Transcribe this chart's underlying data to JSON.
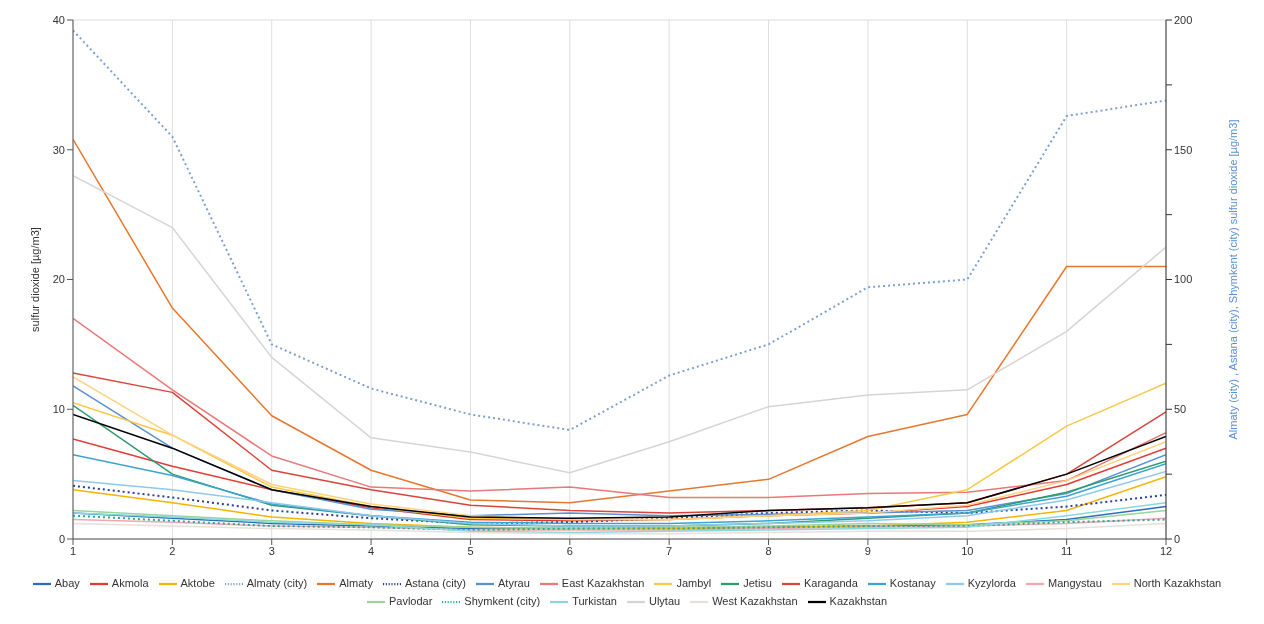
{
  "chart_data": {
    "type": "line",
    "ylabel": "sulfur dioxide [µg/m3]",
    "y2label": "Almaty (city) , Astana (city), Shymkent (city) sulfur dioxide [µg/m3]",
    "x": [
      1,
      2,
      3,
      4,
      5,
      6,
      7,
      8,
      9,
      10,
      11,
      12
    ],
    "xlim": [
      1,
      12
    ],
    "xticks": [
      1,
      2,
      3,
      4,
      5,
      6,
      7,
      8,
      9,
      10,
      11,
      12
    ],
    "ylim": [
      0,
      40
    ],
    "yticks": [
      0,
      10,
      20,
      30,
      40
    ],
    "y2lim": [
      0,
      200
    ],
    "y2ticks": [
      0,
      {
        "value": 25,
        "label": null
      },
      50,
      {
        "value": 75,
        "label": null
      },
      100,
      {
        "value": 125,
        "label": null
      },
      150,
      {
        "value": 175,
        "label": null
      },
      200
    ],
    "grid": true,
    "legend": "bottom",
    "series": [
      {
        "name": "Abay",
        "color": "#2a6ebb",
        "values": [
          2.0,
          1.6,
          1.2,
          1.0,
          0.8,
          0.8,
          0.8,
          0.9,
          1.0,
          1.1,
          1.5,
          2.5
        ]
      },
      {
        "name": "Akmola",
        "color": "#e53935",
        "values": [
          7.7,
          5.6,
          3.8,
          2.4,
          1.5,
          1.4,
          1.5,
          1.8,
          2.0,
          2.5,
          4.2,
          7.0
        ]
      },
      {
        "name": "Aktobe",
        "color": "#f4b400",
        "values": [
          3.8,
          2.8,
          1.7,
          1.2,
          0.9,
          0.8,
          0.8,
          0.9,
          1.0,
          1.3,
          2.2,
          4.8
        ]
      },
      {
        "name": "Almaty (city)",
        "color": "#7f9fd0",
        "axis": "y2",
        "line_style": "dotted",
        "values": [
          196,
          155,
          75,
          58,
          48,
          42,
          63,
          75,
          97,
          100,
          163,
          169
        ]
      },
      {
        "name": "Almaty",
        "color": "#e8772e",
        "values": [
          30.8,
          17.8,
          9.5,
          5.3,
          3.0,
          2.8,
          3.7,
          4.6,
          7.9,
          9.6,
          21,
          21
        ]
      },
      {
        "name": "Astana (city)",
        "color": "#2b3d9b",
        "axis": "y2",
        "line_style": "dotted",
        "values": [
          20.5,
          16,
          11,
          8,
          6,
          6.5,
          8,
          10,
          11,
          10,
          12.5,
          17
        ]
      },
      {
        "name": "Atyrau",
        "color": "#5b8fd6",
        "values": [
          11.8,
          7.0,
          3.8,
          2.3,
          1.8,
          2.0,
          1.8,
          1.9,
          2.0,
          2.2,
          3.5,
          6.5
        ]
      },
      {
        "name": "East Kazakhstan",
        "color": "#e8787a",
        "values": [
          17,
          11.5,
          6.4,
          4.0,
          3.7,
          4.0,
          3.2,
          3.2,
          3.5,
          3.6,
          4.5,
          8.2
        ]
      },
      {
        "name": "Jambyl",
        "color": "#f7c948",
        "values": [
          10.5,
          8,
          4,
          2.5,
          1.6,
          1.5,
          1.5,
          1.8,
          2.2,
          3.8,
          8.7,
          12
        ]
      },
      {
        "name": "Jetisu",
        "color": "#2e9c6e",
        "values": [
          10.3,
          5.0,
          2.6,
          1.8,
          1.1,
          1.0,
          1.0,
          1.2,
          1.6,
          2.0,
          3.6,
          6.0
        ]
      },
      {
        "name": "Karaganda",
        "color": "#d9453b",
        "values": [
          12.8,
          11.3,
          5.3,
          3.8,
          2.6,
          2.2,
          2.0,
          2.2,
          2.4,
          2.8,
          5.0,
          9.8
        ]
      },
      {
        "name": "Kostanay",
        "color": "#3ba3d0",
        "values": [
          6.5,
          4.9,
          2.7,
          1.8,
          1.3,
          1.2,
          1.2,
          1.4,
          1.7,
          2.0,
          3.3,
          5.8
        ]
      },
      {
        "name": "Kyzylorda",
        "color": "#8fc8ef",
        "values": [
          4.5,
          3.8,
          2.8,
          1.8,
          1.2,
          1.0,
          1.0,
          1.2,
          1.4,
          1.8,
          3.0,
          5.2
        ]
      },
      {
        "name": "Mangystau",
        "color": "#f4a7b0",
        "values": [
          1.5,
          1.3,
          1.0,
          0.9,
          0.7,
          0.7,
          0.7,
          0.8,
          0.9,
          1.0,
          1.2,
          1.6
        ]
      },
      {
        "name": "North Kazakhstan",
        "color": "#ffd27f",
        "values": [
          12.5,
          8,
          4.2,
          2.7,
          1.8,
          1.5,
          1.5,
          1.8,
          2.0,
          2.6,
          4.5,
          7.5
        ]
      },
      {
        "name": "Pavlodar",
        "color": "#9bd39b",
        "values": [
          2.2,
          1.8,
          1.4,
          1.1,
          0.9,
          0.8,
          0.9,
          1.0,
          1.2,
          1.1,
          1.4,
          2.2
        ]
      },
      {
        "name": "Shymkent (city)",
        "color": "#2aa69a",
        "axis": "y2",
        "line_style": "dotted",
        "values": [
          9,
          7,
          5,
          4.5,
          3.5,
          4,
          4,
          4.5,
          5,
          5,
          6.5,
          7.5
        ]
      },
      {
        "name": "Turkistan",
        "color": "#88d8e0",
        "values": [
          2.0,
          1.7,
          1.3,
          1.1,
          0.6,
          0.5,
          0.6,
          0.7,
          0.8,
          0.9,
          1.8,
          2.8
        ]
      },
      {
        "name": "Ulytau",
        "color": "#d5d5d5",
        "values": [
          28,
          24,
          14,
          7.8,
          6.7,
          5.1,
          7.5,
          10.2,
          11.1,
          11.5,
          16,
          22.5
        ]
      },
      {
        "name": "West Kazakhstan",
        "color": "#e6e0d8",
        "values": [
          1.2,
          1.0,
          0.8,
          0.7,
          0.5,
          0.4,
          0.4,
          0.5,
          0.6,
          0.6,
          0.8,
          1.2
        ]
      },
      {
        "name": "Kazakhstan",
        "color": "#000000",
        "values": [
          9.6,
          7,
          3.8,
          2.5,
          1.7,
          1.6,
          1.7,
          2.2,
          2.4,
          2.8,
          5,
          7.9
        ]
      }
    ]
  }
}
